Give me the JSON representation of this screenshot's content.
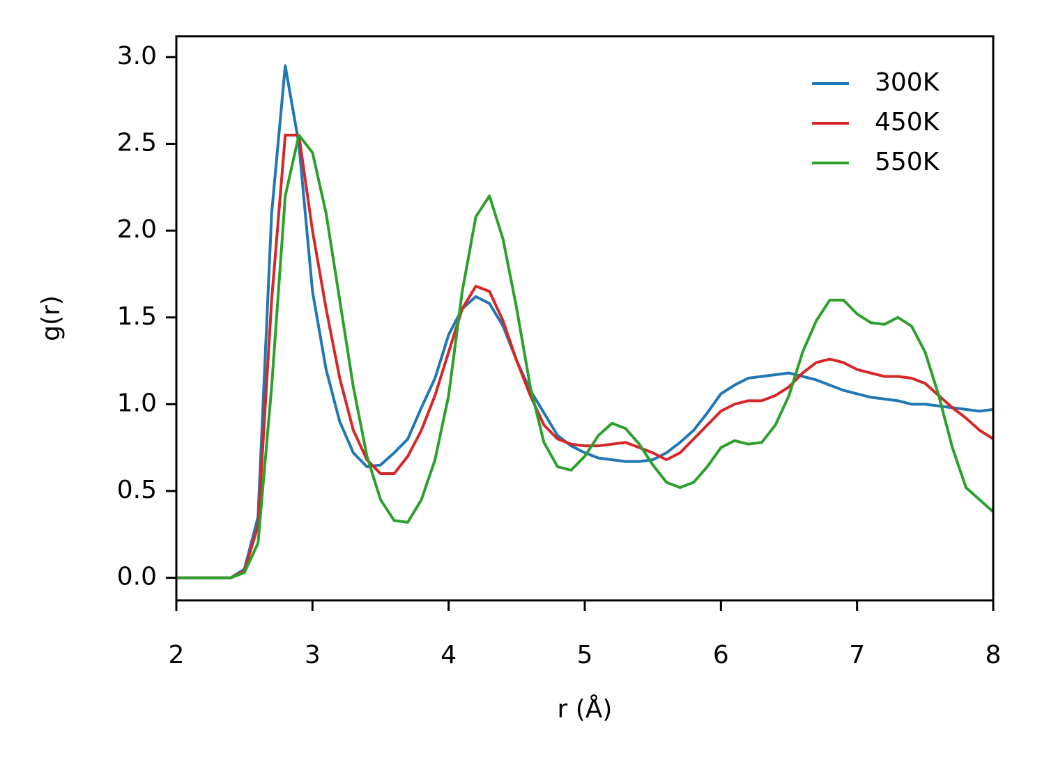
{
  "chart_data": {
    "type": "line",
    "xlabel": "r (Å)",
    "ylabel": "g(r)",
    "x": [
      2.0,
      2.1,
      2.2,
      2.3,
      2.4,
      2.5,
      2.6,
      2.7,
      2.8,
      2.9,
      3.0,
      3.1,
      3.2,
      3.3,
      3.4,
      3.5,
      3.6,
      3.7,
      3.8,
      3.9,
      4.0,
      4.1,
      4.2,
      4.3,
      4.4,
      4.5,
      4.6,
      4.7,
      4.8,
      4.9,
      5.0,
      5.1,
      5.2,
      5.3,
      5.4,
      5.5,
      5.6,
      5.7,
      5.8,
      5.9,
      6.0,
      6.1,
      6.2,
      6.3,
      6.4,
      6.5,
      6.6,
      6.7,
      6.8,
      6.9,
      7.0,
      7.1,
      7.2,
      7.3,
      7.4,
      7.5,
      7.6,
      7.7,
      7.8,
      7.9,
      8.0
    ],
    "series": [
      {
        "name": "300K",
        "color": "#1f77b4",
        "values": [
          0,
          0,
          0,
          0,
          0,
          0.05,
          0.35,
          2.1,
          2.95,
          2.5,
          1.65,
          1.2,
          0.9,
          0.72,
          0.64,
          0.65,
          0.72,
          0.8,
          0.98,
          1.15,
          1.4,
          1.55,
          1.62,
          1.58,
          1.45,
          1.25,
          1.08,
          0.95,
          0.82,
          0.76,
          0.72,
          0.69,
          0.68,
          0.67,
          0.67,
          0.68,
          0.72,
          0.78,
          0.85,
          0.95,
          1.06,
          1.11,
          1.15,
          1.16,
          1.17,
          1.18,
          1.16,
          1.14,
          1.11,
          1.08,
          1.06,
          1.04,
          1.03,
          1.02,
          1.0,
          1.0,
          0.99,
          0.98,
          0.97,
          0.96,
          0.97
        ]
      },
      {
        "name": "450K",
        "color": "#d62728",
        "values": [
          0,
          0,
          0,
          0,
          0,
          0.04,
          0.3,
          1.6,
          2.55,
          2.55,
          2.0,
          1.55,
          1.15,
          0.85,
          0.68,
          0.6,
          0.6,
          0.7,
          0.85,
          1.05,
          1.3,
          1.55,
          1.68,
          1.65,
          1.48,
          1.25,
          1.05,
          0.88,
          0.8,
          0.77,
          0.76,
          0.76,
          0.77,
          0.78,
          0.75,
          0.72,
          0.68,
          0.72,
          0.8,
          0.88,
          0.96,
          1.0,
          1.02,
          1.02,
          1.05,
          1.1,
          1.18,
          1.24,
          1.26,
          1.24,
          1.2,
          1.18,
          1.16,
          1.16,
          1.15,
          1.12,
          1.05,
          0.98,
          0.92,
          0.85,
          0.8
        ]
      },
      {
        "name": "550K",
        "color": "#2ca02c",
        "values": [
          0,
          0,
          0,
          0,
          0,
          0.03,
          0.2,
          1.1,
          2.2,
          2.55,
          2.45,
          2.1,
          1.6,
          1.1,
          0.7,
          0.45,
          0.33,
          0.32,
          0.45,
          0.68,
          1.05,
          1.65,
          2.08,
          2.2,
          1.95,
          1.55,
          1.1,
          0.78,
          0.64,
          0.62,
          0.7,
          0.82,
          0.89,
          0.86,
          0.77,
          0.65,
          0.55,
          0.52,
          0.55,
          0.64,
          0.75,
          0.79,
          0.77,
          0.78,
          0.88,
          1.05,
          1.3,
          1.48,
          1.6,
          1.6,
          1.52,
          1.47,
          1.46,
          1.5,
          1.45,
          1.3,
          1.05,
          0.75,
          0.52,
          0.45,
          0.38
        ]
      }
    ],
    "xlim": [
      2,
      8
    ],
    "xticks": [
      2,
      3,
      4,
      5,
      6,
      7,
      8
    ],
    "ylim": [
      -0.13,
      3.12
    ],
    "yticks": [
      {
        "value": 0,
        "label": "0.0"
      },
      0.5,
      {
        "value": 1,
        "label": "1.0"
      },
      1.5,
      {
        "value": 2,
        "label": "2.0"
      },
      2.5,
      {
        "value": 3,
        "label": "3.0"
      }
    ],
    "grid": false,
    "legend": "upper right"
  }
}
